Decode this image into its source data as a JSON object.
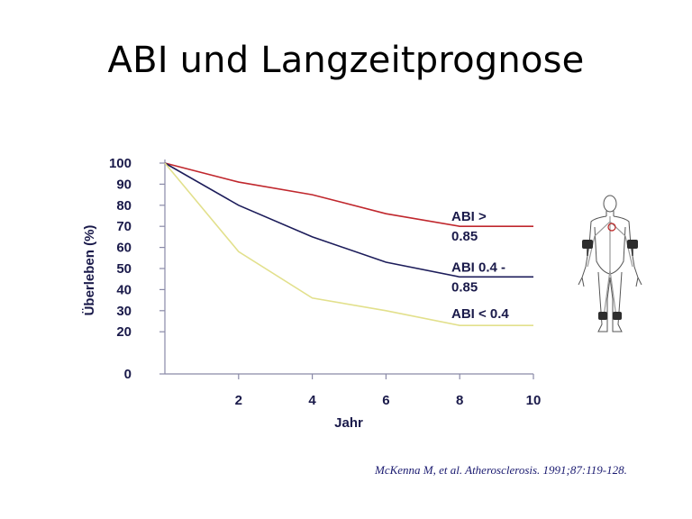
{
  "slide": {
    "title": "ABI und Langzeitprognose",
    "citation": "McKenna M, et al. Atherosclerosis. 1991;87:119-128."
  },
  "chart_data": {
    "type": "line",
    "title": "",
    "xlabel": "Jahr",
    "ylabel": "Überleben (%)",
    "xlim": [
      0,
      10
    ],
    "ylim": [
      0,
      100
    ],
    "x_ticks": [
      2,
      4,
      6,
      8,
      10
    ],
    "y_ticks": [
      0,
      20,
      30,
      40,
      50,
      60,
      70,
      80,
      90,
      100
    ],
    "grid": false,
    "series": [
      {
        "name": "ABI > 0.85",
        "label_lines": [
          "ABI >",
          "0.85"
        ],
        "color": "#c0272d",
        "x": [
          0,
          2,
          4,
          6,
          8,
          10
        ],
        "y": [
          100,
          91,
          85,
          76,
          70,
          70
        ]
      },
      {
        "name": "ABI 0.4 - 0.85",
        "label_lines": [
          "ABI 0.4 -",
          "0.85"
        ],
        "color": "#1c1c5a",
        "x": [
          0,
          2,
          4,
          6,
          8,
          10
        ],
        "y": [
          100,
          80,
          65,
          53,
          46,
          46
        ]
      },
      {
        "name": "ABI < 0.4",
        "label_lines": [
          "ABI < 0.4"
        ],
        "color": "#e2e08c",
        "x": [
          0,
          2,
          4,
          6,
          8,
          10
        ],
        "y": [
          100,
          58,
          36,
          30,
          23,
          23
        ]
      }
    ]
  },
  "icons": {
    "body_figure": "human-body-figure-icon"
  }
}
